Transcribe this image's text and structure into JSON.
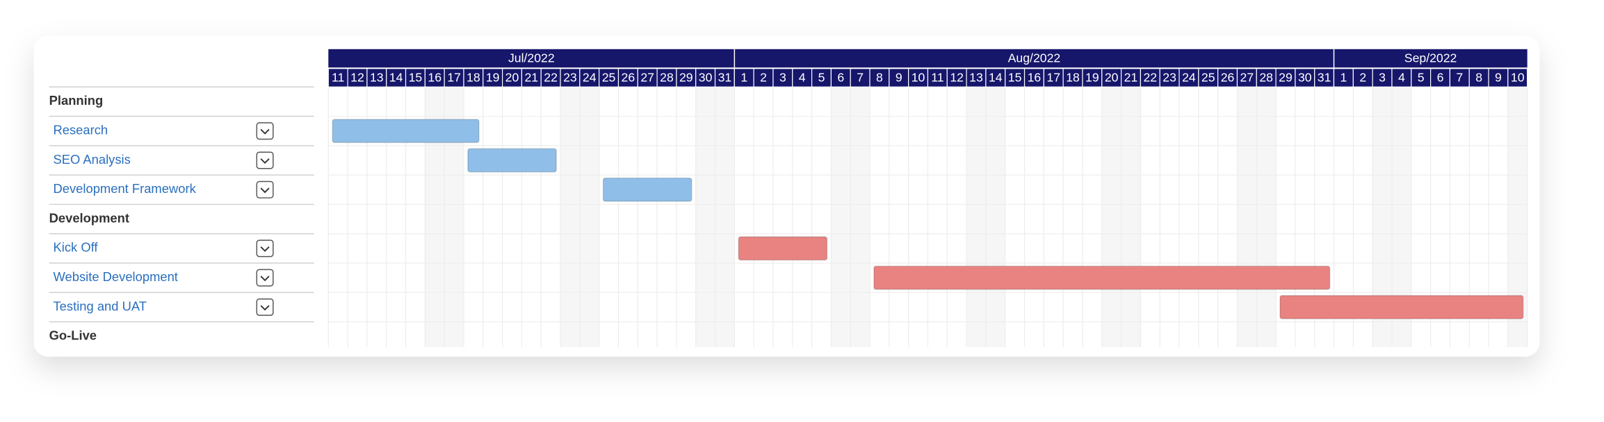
{
  "timeline": {
    "months": [
      {
        "label": "Jul/2022",
        "days": [
          11,
          12,
          13,
          14,
          15,
          16,
          17,
          18,
          19,
          20,
          21,
          22,
          23,
          24,
          25,
          26,
          27,
          28,
          29,
          30,
          31
        ]
      },
      {
        "label": "Aug/2022",
        "days": [
          1,
          2,
          3,
          4,
          5,
          6,
          7,
          8,
          9,
          10,
          11,
          12,
          13,
          14,
          15,
          16,
          17,
          18,
          19,
          20,
          21,
          22,
          23,
          24,
          25,
          26,
          27,
          28,
          29,
          30,
          31
        ]
      },
      {
        "label": "Sep/2022",
        "days": [
          1,
          2,
          3,
          4,
          5,
          6,
          7,
          8,
          9,
          10
        ]
      }
    ]
  },
  "groups": [
    {
      "name": "Planning",
      "color": "#8fbee8",
      "tasks": [
        {
          "name": "Research",
          "start": {
            "month": 0,
            "day": 11
          },
          "end": {
            "month": 0,
            "day": 18
          }
        },
        {
          "name": "SEO Analysis",
          "start": {
            "month": 0,
            "day": 18
          },
          "end": {
            "month": 0,
            "day": 22
          }
        },
        {
          "name": "Development Framework",
          "start": {
            "month": 0,
            "day": 25
          },
          "end": {
            "month": 0,
            "day": 29
          }
        }
      ]
    },
    {
      "name": "Development",
      "color": "#e88381",
      "tasks": [
        {
          "name": "Kick Off",
          "start": {
            "month": 1,
            "day": 1
          },
          "end": {
            "month": 1,
            "day": 5
          }
        },
        {
          "name": "Website Development",
          "start": {
            "month": 1,
            "day": 8
          },
          "end": {
            "month": 1,
            "day": 31
          }
        },
        {
          "name": "Testing and UAT",
          "start": {
            "month": 1,
            "day": 29
          },
          "end": {
            "month": 2,
            "day": 10
          }
        }
      ]
    },
    {
      "name": "Go-Live",
      "tasks": []
    }
  ]
}
